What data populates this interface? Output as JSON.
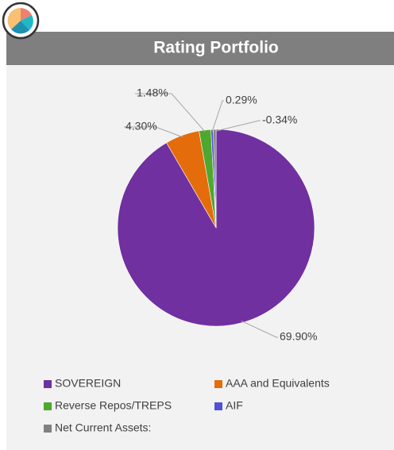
{
  "chart_data": {
    "type": "pie",
    "title": "Rating Portfolio",
    "categories": [
      "SOVEREIGN",
      "AAA and Equivalents",
      "Reverse Repos/TREPS",
      "AIF",
      "Net Current Assets:"
    ],
    "values": [
      69.9,
      4.3,
      1.48,
      0.29,
      -0.34
    ],
    "value_labels": [
      "69.90%",
      "4.30%",
      "1.48%",
      "0.29%",
      "-0.34%"
    ],
    "colors": [
      "#7030a0",
      "#e46c0a",
      "#4ea72e",
      "#5050d8",
      "#808080"
    ],
    "legend": "bottom"
  }
}
